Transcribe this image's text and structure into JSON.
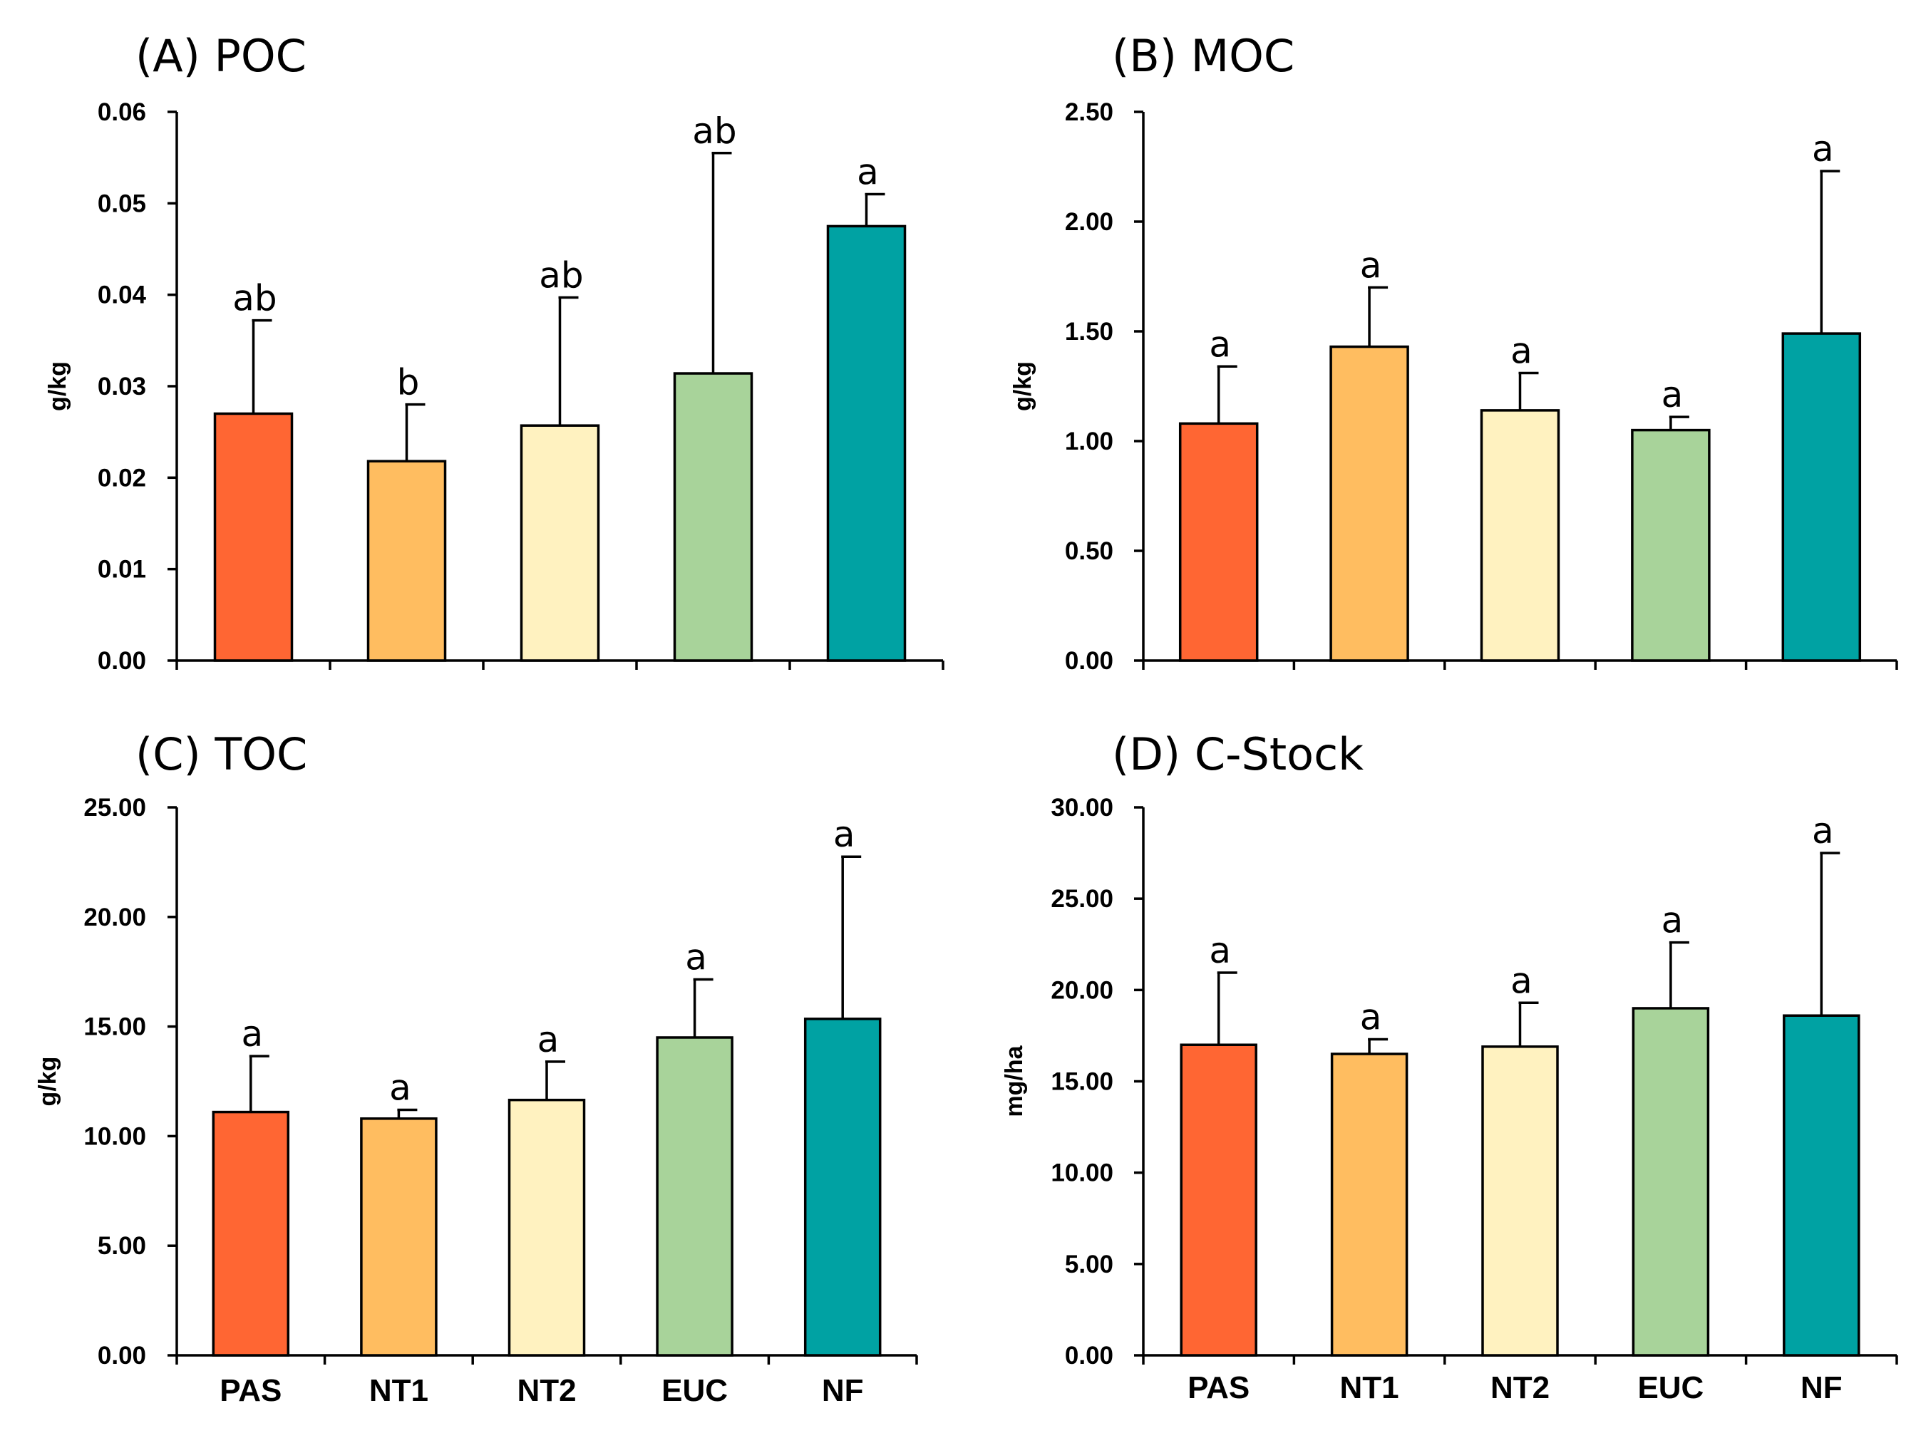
{
  "chart_data": [
    {
      "type": "bar",
      "title": "(A) POC",
      "ylabel": "g/kg",
      "xlabel": "",
      "categories": [
        "PAS",
        "NT1",
        "NT2",
        "EUC",
        "NF"
      ],
      "values": [
        0.027,
        0.0218,
        0.0257,
        0.0314,
        0.0475
      ],
      "errors": [
        0.0102,
        0.0062,
        0.014,
        0.0241,
        0.0035
      ],
      "letters": [
        "ab",
        "b",
        "ab",
        "ab",
        "a"
      ],
      "ylim": [
        0,
        0.06
      ],
      "yticks": [
        "0.00",
        "0.01",
        "0.02",
        "0.03",
        "0.04",
        "0.05",
        "0.06"
      ],
      "show_categories": false
    },
    {
      "type": "bar",
      "title": "(B) MOC",
      "ylabel": "g/kg",
      "xlabel": "",
      "categories": [
        "PAS",
        "NT1",
        "NT2",
        "EUC",
        "NF"
      ],
      "values": [
        1.08,
        1.43,
        1.14,
        1.05,
        1.49
      ],
      "errors": [
        0.26,
        0.27,
        0.17,
        0.06,
        0.74
      ],
      "letters": [
        "a",
        "a",
        "a",
        "a",
        "a"
      ],
      "ylim": [
        0,
        2.5
      ],
      "yticks": [
        "0.00",
        "0.50",
        "1.00",
        "1.50",
        "2.00",
        "2.50"
      ],
      "show_categories": false
    },
    {
      "type": "bar",
      "title": "(C) TOC",
      "ylabel": "g/kg",
      "xlabel": "",
      "categories": [
        "PAS",
        "NT1",
        "NT2",
        "EUC",
        "NF"
      ],
      "values": [
        11.1,
        10.8,
        11.65,
        14.5,
        15.35
      ],
      "errors": [
        2.55,
        0.4,
        1.75,
        2.65,
        7.4
      ],
      "letters": [
        "a",
        "a",
        "a",
        "a",
        "a"
      ],
      "ylim": [
        0,
        25
      ],
      "yticks": [
        "0.00",
        "5.00",
        "10.00",
        "15.00",
        "20.00",
        "25.00"
      ],
      "show_categories": true
    },
    {
      "type": "bar",
      "title": "(D) C-Stock",
      "ylabel": "mg/ha",
      "xlabel": "",
      "categories": [
        "PAS",
        "NT1",
        "NT2",
        "EUC",
        "NF"
      ],
      "values": [
        17.0,
        16.5,
        16.9,
        19.0,
        18.6
      ],
      "errors": [
        3.95,
        0.8,
        2.4,
        3.6,
        8.9
      ],
      "letters": [
        "a",
        "a",
        "a",
        "a",
        "a"
      ],
      "ylim": [
        0,
        30
      ],
      "yticks": [
        "0.00",
        "5.00",
        "10.00",
        "15.00",
        "20.00",
        "25.00",
        "30.00"
      ],
      "show_categories": true
    }
  ],
  "colors": {
    "PAS": "#ff6633",
    "NT1": "#ffbd60",
    "NT2": "#fff2c0",
    "EUC": "#a8d39a",
    "NF": "#00a2a3"
  }
}
